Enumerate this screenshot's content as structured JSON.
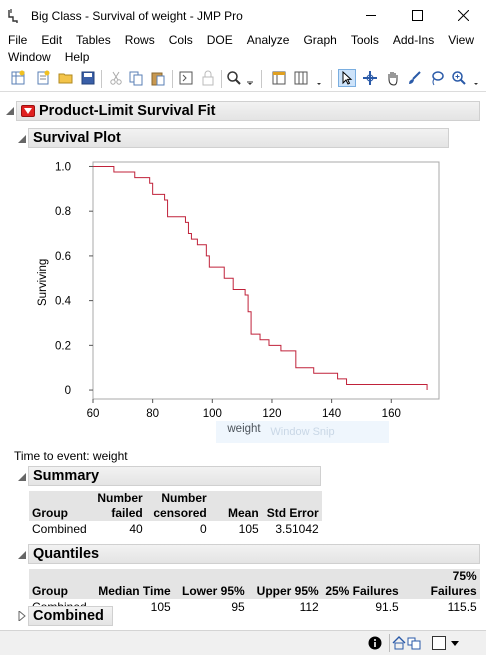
{
  "window": {
    "title": "Big Class - Survival of weight - JMP Pro"
  },
  "menu": {
    "row1": [
      "File",
      "Edit",
      "Tables",
      "Rows",
      "Cols",
      "DOE",
      "Analyze",
      "Graph",
      "Tools",
      "Add-Ins",
      "View"
    ],
    "row2": [
      "Window",
      "Help"
    ]
  },
  "report": {
    "title": "Product-Limit Survival Fit",
    "plot_section": "Survival Plot",
    "time_to_event": "Time to event:  weight",
    "summary_section": "Summary",
    "quantiles_section": "Quantiles",
    "combined_section": "Combined",
    "watermark": "Window Snip"
  },
  "summary": {
    "headers": [
      "Group",
      "Number failed",
      "Number censored",
      "Mean",
      "Std Error"
    ],
    "header_lines": [
      [
        "",
        "Group"
      ],
      [
        "Number",
        "failed"
      ],
      [
        "Number",
        "censored"
      ],
      [
        "",
        "Mean"
      ],
      [
        "",
        "Std Error"
      ]
    ],
    "rows": [
      [
        "Combined",
        "40",
        "0",
        "105",
        "3.51042"
      ]
    ]
  },
  "quantiles": {
    "headers": [
      "Group",
      "Median Time",
      "Lower 95%",
      "Upper 95%",
      "25% Failures",
      "75% Failures"
    ],
    "rows": [
      [
        "Combined",
        "105",
        "95",
        "112",
        "91.5",
        "115.5"
      ]
    ]
  },
  "chart_data": {
    "type": "line",
    "step": true,
    "xlabel": "weight",
    "ylabel": "Surviving",
    "xlim": [
      60,
      176
    ],
    "ylim": [
      -0.04,
      1.02
    ],
    "xticks": [
      60,
      80,
      100,
      120,
      140,
      160
    ],
    "yticks": [
      0,
      0.2,
      0.4,
      0.6,
      0.8,
      1.0
    ],
    "ytick_labels": [
      "0",
      "0.2",
      "0.4",
      "0.6",
      "0.8",
      "1.0"
    ],
    "grid": false,
    "line_color": "#c0223a",
    "series": [
      {
        "x": [
          64,
          67,
          74,
          79,
          80,
          84,
          85,
          91,
          92,
          93,
          95,
          98,
          99,
          104,
          107,
          111,
          112,
          113,
          116,
          119,
          123,
          128,
          134,
          142,
          145,
          172
        ],
        "y": [
          1.0,
          0.975,
          0.95,
          0.925,
          0.875,
          0.85,
          0.775,
          0.75,
          0.7,
          0.675,
          0.65,
          0.6,
          0.55,
          0.5,
          0.45,
          0.425,
          0.35,
          0.25,
          0.225,
          0.2,
          0.175,
          0.1,
          0.075,
          0.05,
          0.025,
          0.0
        ]
      }
    ]
  },
  "statusbar": {
    "icons": [
      "info-icon",
      "home-icon",
      "window-icon",
      "dropdown-icon"
    ]
  }
}
